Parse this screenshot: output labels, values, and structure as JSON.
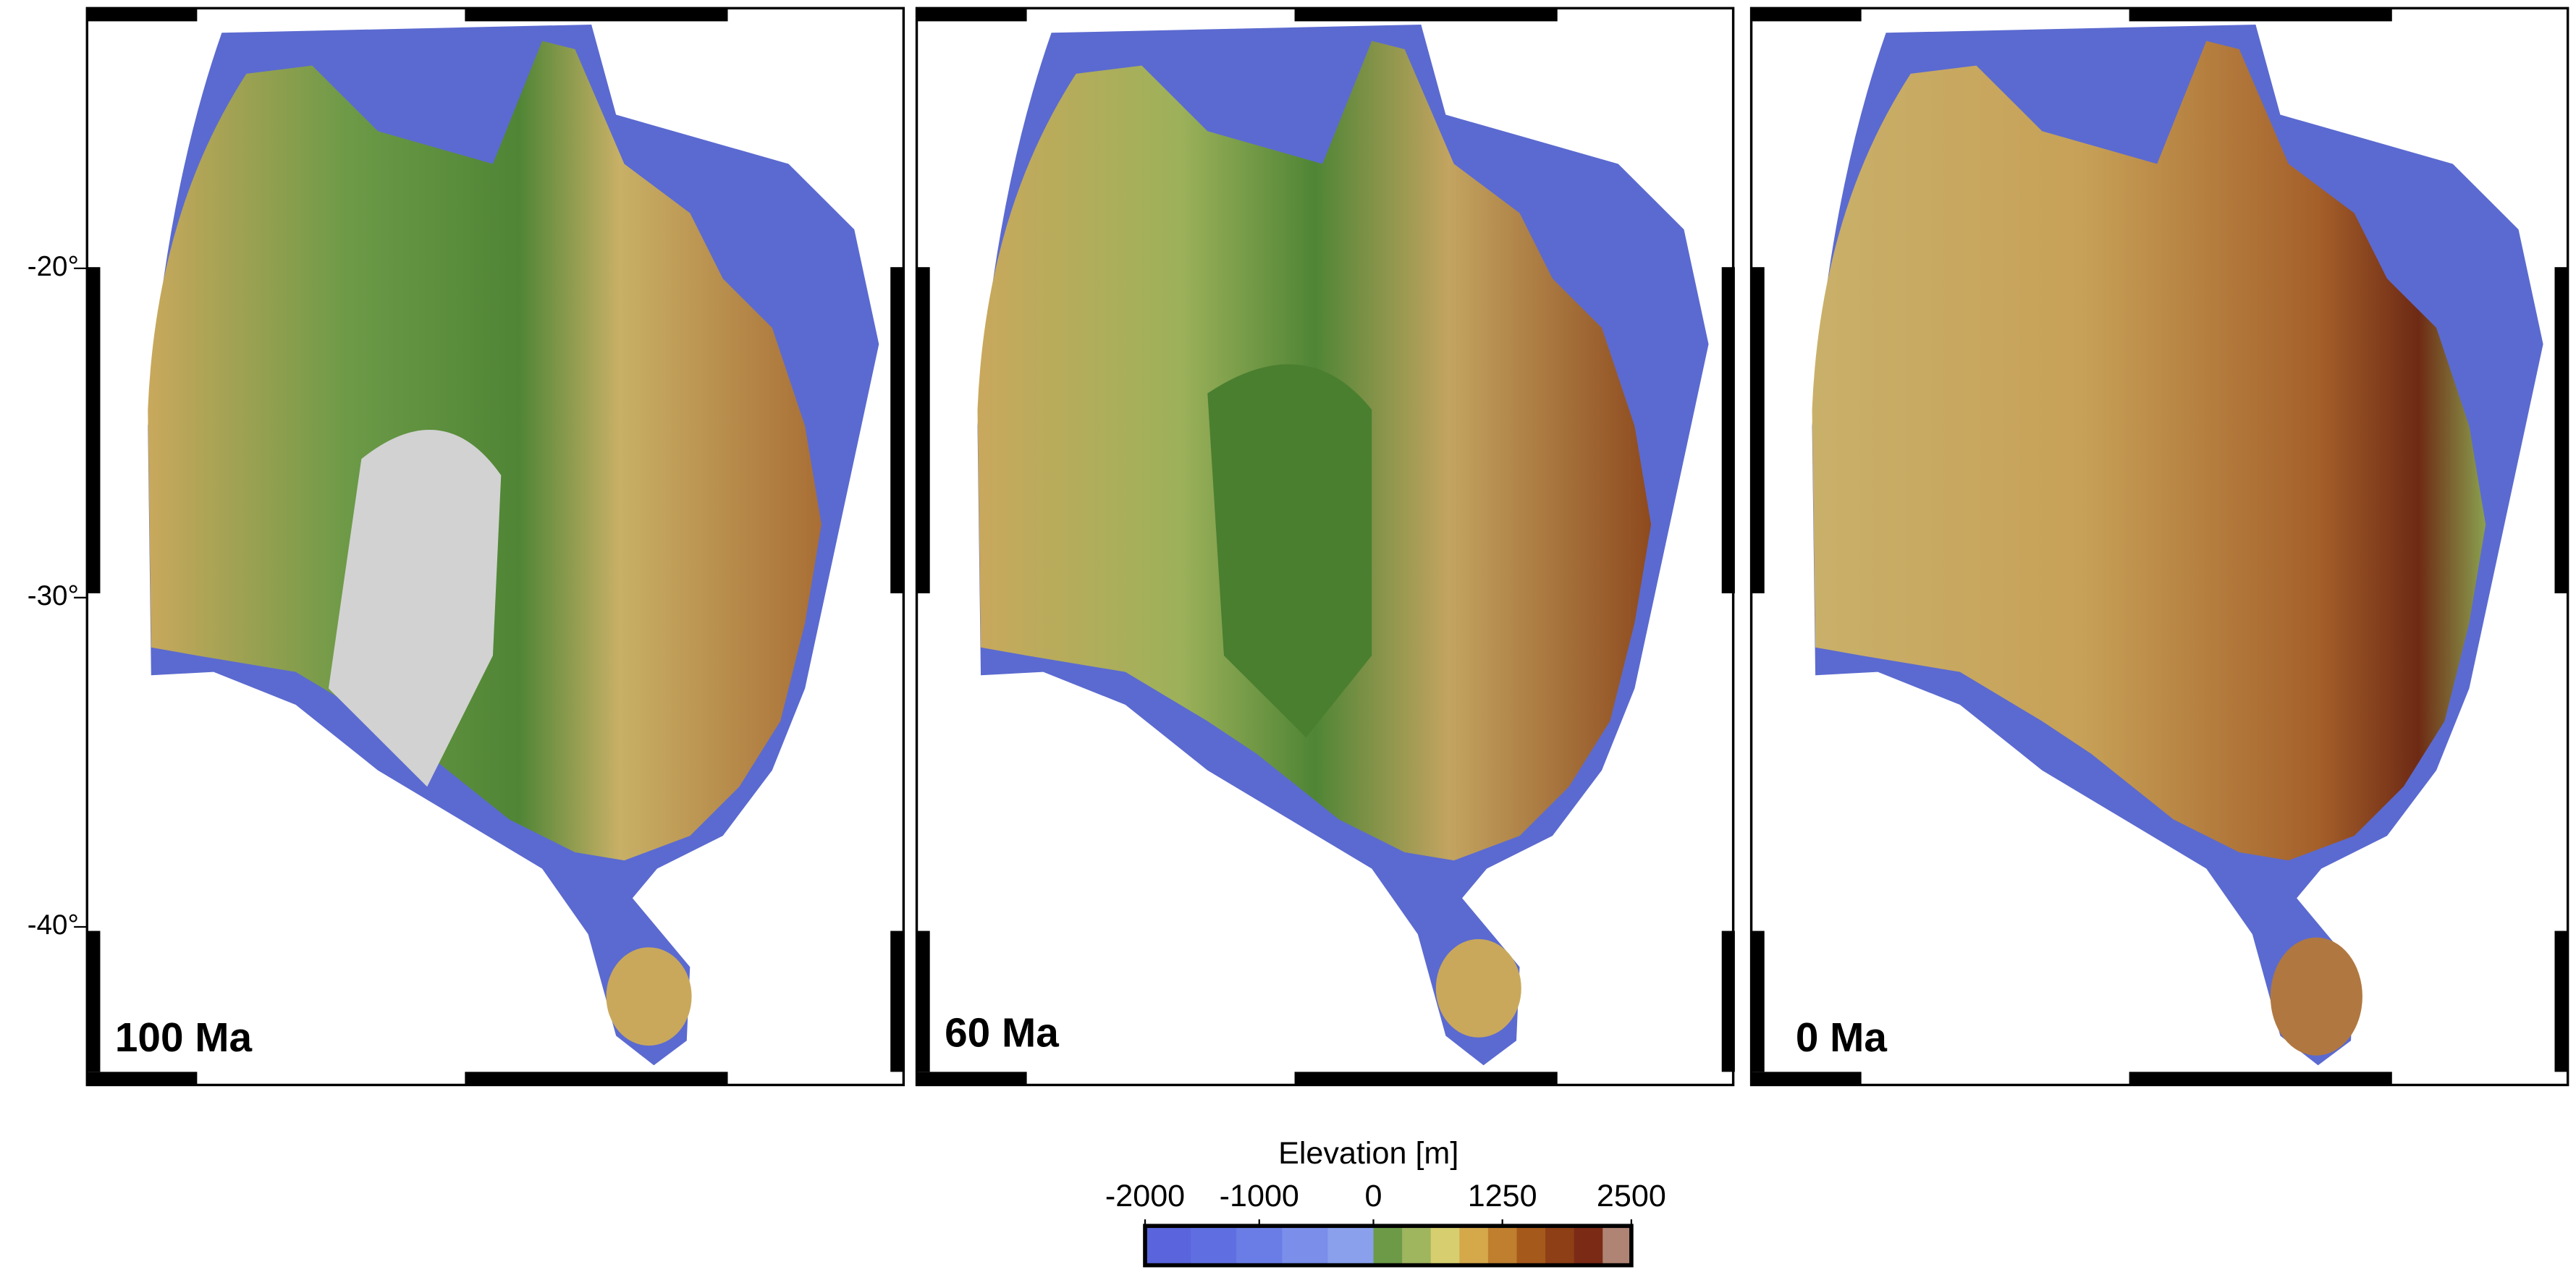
{
  "chart_data": {
    "type": "map",
    "panels": [
      {
        "label": "100 Ma"
      },
      {
        "label": "60 Ma"
      },
      {
        "label": "0 Ma"
      }
    ],
    "ylim": [
      -44.8,
      -12.1
    ],
    "yticks": [
      {
        "value": -20,
        "label": "-20°"
      },
      {
        "value": -30,
        "label": "-30°"
      },
      {
        "value": -40,
        "label": "-40°"
      }
    ],
    "colorbar": {
      "title": "Elevation [m]",
      "lim": [
        -2000,
        2500
      ],
      "ticks": [
        -2000,
        -1000,
        0,
        1250,
        2500
      ],
      "colors_negative": [
        "#5a64dc",
        "#5f6fe2",
        "#6a7de6",
        "#7a8eea",
        "#8aa0ec"
      ],
      "colors_positive": [
        "#6c9a47",
        "#9fb55e",
        "#d7cf6f",
        "#d5a84a",
        "#bf7f2e",
        "#a5591b",
        "#8e3f16",
        "#7b2a16",
        "#b08474"
      ]
    }
  }
}
